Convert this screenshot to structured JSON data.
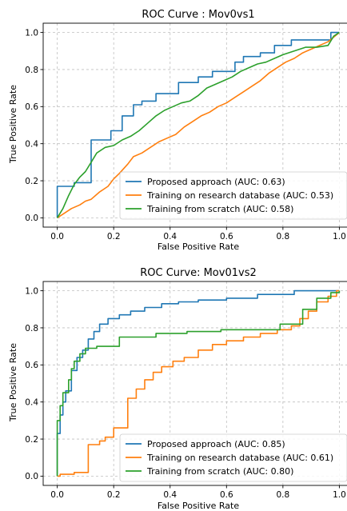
{
  "colors": {
    "proposed": "#1f77b4",
    "research": "#ff7f0e",
    "scratch": "#2ca02c"
  },
  "chart_data": [
    {
      "type": "line",
      "title": "ROC Curve : Mov0vs1",
      "xlabel": "False Positive Rate",
      "ylabel": "True Positive Rate",
      "xlim": [
        -0.05,
        1.03
      ],
      "ylim": [
        -0.05,
        1.05
      ],
      "xticks": [
        "0.0",
        "0.2",
        "0.4",
        "0.6",
        "0.8",
        "1.0"
      ],
      "yticks": [
        "0.0",
        "0.2",
        "0.4",
        "0.6",
        "0.8",
        "1.0"
      ],
      "grid": true,
      "legend_position": "lower-right",
      "series": [
        {
          "name": "Proposed approach (AUC: 0.63)",
          "color_key": "proposed",
          "points": [
            [
              0,
              0
            ],
            [
              0,
              0.17
            ],
            [
              0.06,
              0.17
            ],
            [
              0.06,
              0.19
            ],
            [
              0.12,
              0.19
            ],
            [
              0.12,
              0.42
            ],
            [
              0.19,
              0.42
            ],
            [
              0.19,
              0.47
            ],
            [
              0.23,
              0.47
            ],
            [
              0.23,
              0.55
            ],
            [
              0.27,
              0.55
            ],
            [
              0.27,
              0.61
            ],
            [
              0.3,
              0.61
            ],
            [
              0.3,
              0.63
            ],
            [
              0.35,
              0.63
            ],
            [
              0.35,
              0.67
            ],
            [
              0.43,
              0.67
            ],
            [
              0.43,
              0.73
            ],
            [
              0.5,
              0.73
            ],
            [
              0.5,
              0.76
            ],
            [
              0.55,
              0.76
            ],
            [
              0.55,
              0.79
            ],
            [
              0.63,
              0.79
            ],
            [
              0.63,
              0.84
            ],
            [
              0.66,
              0.84
            ],
            [
              0.66,
              0.87
            ],
            [
              0.72,
              0.87
            ],
            [
              0.72,
              0.89
            ],
            [
              0.77,
              0.89
            ],
            [
              0.77,
              0.93
            ],
            [
              0.83,
              0.93
            ],
            [
              0.83,
              0.96
            ],
            [
              0.97,
              0.96
            ],
            [
              0.97,
              1.0
            ],
            [
              1.0,
              1.0
            ]
          ]
        },
        {
          "name": "Training on research database (AUC: 0.53)",
          "color_key": "research",
          "points": [
            [
              0,
              0
            ],
            [
              0.02,
              0.02
            ],
            [
              0.05,
              0.05
            ],
            [
              0.08,
              0.07
            ],
            [
              0.1,
              0.09
            ],
            [
              0.12,
              0.1
            ],
            [
              0.15,
              0.14
            ],
            [
              0.18,
              0.17
            ],
            [
              0.2,
              0.21
            ],
            [
              0.22,
              0.24
            ],
            [
              0.25,
              0.29
            ],
            [
              0.27,
              0.33
            ],
            [
              0.3,
              0.35
            ],
            [
              0.33,
              0.38
            ],
            [
              0.36,
              0.41
            ],
            [
              0.39,
              0.43
            ],
            [
              0.42,
              0.45
            ],
            [
              0.45,
              0.49
            ],
            [
              0.48,
              0.52
            ],
            [
              0.51,
              0.55
            ],
            [
              0.54,
              0.57
            ],
            [
              0.57,
              0.6
            ],
            [
              0.6,
              0.62
            ],
            [
              0.63,
              0.65
            ],
            [
              0.66,
              0.68
            ],
            [
              0.69,
              0.71
            ],
            [
              0.72,
              0.74
            ],
            [
              0.75,
              0.78
            ],
            [
              0.78,
              0.81
            ],
            [
              0.81,
              0.84
            ],
            [
              0.84,
              0.86
            ],
            [
              0.87,
              0.89
            ],
            [
              0.9,
              0.91
            ],
            [
              0.93,
              0.93
            ],
            [
              0.96,
              0.95
            ],
            [
              1.0,
              1.0
            ]
          ]
        },
        {
          "name": "Training from scratch (AUC: 0.58)",
          "color_key": "scratch",
          "points": [
            [
              0,
              0
            ],
            [
              0.02,
              0.05
            ],
            [
              0.04,
              0.12
            ],
            [
              0.06,
              0.18
            ],
            [
              0.08,
              0.22
            ],
            [
              0.1,
              0.25
            ],
            [
              0.12,
              0.3
            ],
            [
              0.14,
              0.35
            ],
            [
              0.17,
              0.38
            ],
            [
              0.2,
              0.39
            ],
            [
              0.23,
              0.42
            ],
            [
              0.26,
              0.44
            ],
            [
              0.29,
              0.47
            ],
            [
              0.32,
              0.51
            ],
            [
              0.35,
              0.55
            ],
            [
              0.38,
              0.58
            ],
            [
              0.41,
              0.6
            ],
            [
              0.44,
              0.62
            ],
            [
              0.47,
              0.63
            ],
            [
              0.5,
              0.66
            ],
            [
              0.53,
              0.7
            ],
            [
              0.56,
              0.72
            ],
            [
              0.59,
              0.74
            ],
            [
              0.62,
              0.76
            ],
            [
              0.65,
              0.79
            ],
            [
              0.68,
              0.81
            ],
            [
              0.71,
              0.83
            ],
            [
              0.74,
              0.84
            ],
            [
              0.77,
              0.86
            ],
            [
              0.8,
              0.88
            ],
            [
              0.84,
              0.9
            ],
            [
              0.88,
              0.92
            ],
            [
              0.92,
              0.92
            ],
            [
              0.96,
              0.93
            ],
            [
              0.98,
              0.98
            ],
            [
              1.0,
              1.0
            ]
          ]
        }
      ]
    },
    {
      "type": "line",
      "title": "ROC Curve: Mov01vs2",
      "xlabel": "False Positive Rate",
      "ylabel": "True Positive Rate",
      "xlim": [
        -0.05,
        1.03
      ],
      "ylim": [
        -0.05,
        1.05
      ],
      "xticks": [
        "0.0",
        "0.2",
        "0.4",
        "0.6",
        "0.8",
        "1.0"
      ],
      "yticks": [
        "0.0",
        "0.2",
        "0.4",
        "0.6",
        "0.8",
        "1.0"
      ],
      "grid": true,
      "legend_position": "lower-right",
      "series": [
        {
          "name": "Proposed approach (AUC: 0.85)",
          "color_key": "proposed",
          "points": [
            [
              0,
              0
            ],
            [
              0,
              0.23
            ],
            [
              0.01,
              0.23
            ],
            [
              0.01,
              0.33
            ],
            [
              0.02,
              0.33
            ],
            [
              0.02,
              0.4
            ],
            [
              0.03,
              0.4
            ],
            [
              0.03,
              0.46
            ],
            [
              0.05,
              0.46
            ],
            [
              0.05,
              0.57
            ],
            [
              0.07,
              0.57
            ],
            [
              0.07,
              0.64
            ],
            [
              0.09,
              0.64
            ],
            [
              0.09,
              0.68
            ],
            [
              0.11,
              0.68
            ],
            [
              0.11,
              0.74
            ],
            [
              0.13,
              0.74
            ],
            [
              0.13,
              0.78
            ],
            [
              0.15,
              0.78
            ],
            [
              0.15,
              0.82
            ],
            [
              0.18,
              0.82
            ],
            [
              0.18,
              0.85
            ],
            [
              0.22,
              0.85
            ],
            [
              0.22,
              0.87
            ],
            [
              0.26,
              0.87
            ],
            [
              0.26,
              0.89
            ],
            [
              0.31,
              0.89
            ],
            [
              0.31,
              0.91
            ],
            [
              0.37,
              0.91
            ],
            [
              0.37,
              0.93
            ],
            [
              0.43,
              0.93
            ],
            [
              0.43,
              0.94
            ],
            [
              0.5,
              0.94
            ],
            [
              0.5,
              0.95
            ],
            [
              0.6,
              0.95
            ],
            [
              0.6,
              0.96
            ],
            [
              0.71,
              0.96
            ],
            [
              0.71,
              0.98
            ],
            [
              0.84,
              0.98
            ],
            [
              0.84,
              1.0
            ],
            [
              1.0,
              1.0
            ]
          ]
        },
        {
          "name": "Training on research database (AUC: 0.61)",
          "color_key": "research",
          "points": [
            [
              0,
              0
            ],
            [
              0.01,
              0
            ],
            [
              0.01,
              0.01
            ],
            [
              0.06,
              0.01
            ],
            [
              0.06,
              0.02
            ],
            [
              0.11,
              0.02
            ],
            [
              0.11,
              0.17
            ],
            [
              0.15,
              0.17
            ],
            [
              0.15,
              0.19
            ],
            [
              0.17,
              0.19
            ],
            [
              0.17,
              0.21
            ],
            [
              0.2,
              0.21
            ],
            [
              0.2,
              0.26
            ],
            [
              0.25,
              0.26
            ],
            [
              0.25,
              0.42
            ],
            [
              0.28,
              0.42
            ],
            [
              0.28,
              0.47
            ],
            [
              0.31,
              0.47
            ],
            [
              0.31,
              0.52
            ],
            [
              0.34,
              0.52
            ],
            [
              0.34,
              0.56
            ],
            [
              0.37,
              0.56
            ],
            [
              0.37,
              0.59
            ],
            [
              0.41,
              0.59
            ],
            [
              0.41,
              0.62
            ],
            [
              0.45,
              0.62
            ],
            [
              0.45,
              0.64
            ],
            [
              0.5,
              0.64
            ],
            [
              0.5,
              0.68
            ],
            [
              0.55,
              0.68
            ],
            [
              0.55,
              0.71
            ],
            [
              0.6,
              0.71
            ],
            [
              0.6,
              0.73
            ],
            [
              0.66,
              0.73
            ],
            [
              0.66,
              0.75
            ],
            [
              0.72,
              0.75
            ],
            [
              0.72,
              0.77
            ],
            [
              0.78,
              0.77
            ],
            [
              0.78,
              0.79
            ],
            [
              0.83,
              0.79
            ],
            [
              0.83,
              0.81
            ],
            [
              0.86,
              0.81
            ],
            [
              0.86,
              0.85
            ],
            [
              0.89,
              0.85
            ],
            [
              0.89,
              0.89
            ],
            [
              0.92,
              0.89
            ],
            [
              0.92,
              0.94
            ],
            [
              0.96,
              0.94
            ],
            [
              0.96,
              0.97
            ],
            [
              0.99,
              0.97
            ],
            [
              0.99,
              1.0
            ],
            [
              1.0,
              1.0
            ]
          ]
        },
        {
          "name": "Training from scratch (AUC: 0.80)",
          "color_key": "scratch",
          "points": [
            [
              0,
              0
            ],
            [
              0,
              0.3
            ],
            [
              0.01,
              0.3
            ],
            [
              0.01,
              0.38
            ],
            [
              0.02,
              0.38
            ],
            [
              0.02,
              0.45
            ],
            [
              0.04,
              0.45
            ],
            [
              0.04,
              0.52
            ],
            [
              0.05,
              0.52
            ],
            [
              0.05,
              0.58
            ],
            [
              0.06,
              0.58
            ],
            [
              0.06,
              0.62
            ],
            [
              0.08,
              0.62
            ],
            [
              0.08,
              0.66
            ],
            [
              0.1,
              0.66
            ],
            [
              0.1,
              0.69
            ],
            [
              0.14,
              0.69
            ],
            [
              0.14,
              0.7
            ],
            [
              0.22,
              0.7
            ],
            [
              0.22,
              0.75
            ],
            [
              0.35,
              0.75
            ],
            [
              0.35,
              0.77
            ],
            [
              0.46,
              0.77
            ],
            [
              0.46,
              0.78
            ],
            [
              0.58,
              0.78
            ],
            [
              0.58,
              0.79
            ],
            [
              0.79,
              0.79
            ],
            [
              0.79,
              0.82
            ],
            [
              0.87,
              0.82
            ],
            [
              0.87,
              0.9
            ],
            [
              0.92,
              0.9
            ],
            [
              0.92,
              0.96
            ],
            [
              0.97,
              0.96
            ],
            [
              0.97,
              0.99
            ],
            [
              1.0,
              0.99
            ],
            [
              1.0,
              1.0
            ]
          ]
        }
      ]
    }
  ]
}
